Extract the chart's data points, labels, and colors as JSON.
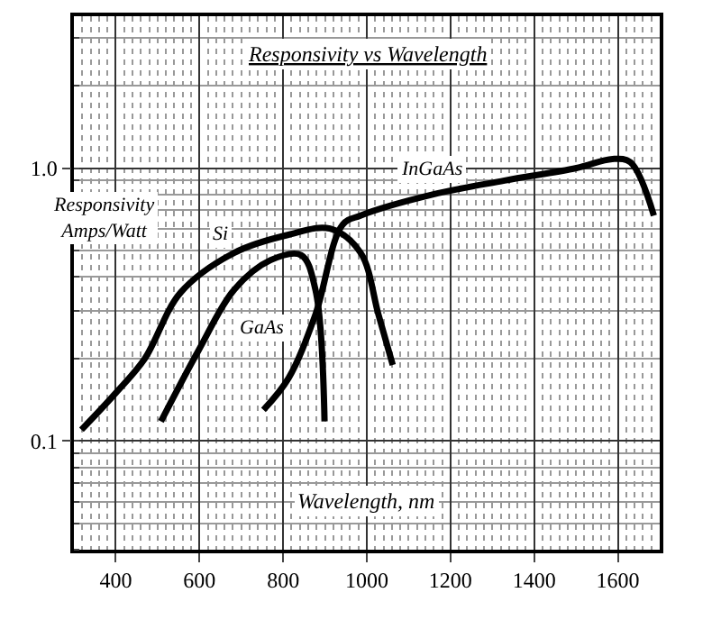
{
  "chart_data": {
    "type": "line",
    "title": "Responsivity vs Wavelength",
    "xlabel": "Wavelength, nm",
    "ylabel": "Responsivity\nAmps/Watt",
    "log": "y",
    "grid": true,
    "legend": false,
    "marker": "none",
    "line_style": "solid",
    "xlim": [
      300,
      1700
    ],
    "xticks": [
      400,
      600,
      800,
      1000,
      1200,
      1400,
      1600
    ],
    "ylim": [
      0.04,
      3.6
    ],
    "yticks": [
      {
        "value": 0.1,
        "label": "0.1"
      },
      {
        "value": 1,
        "label": "1.0"
      }
    ],
    "series": [
      {
        "name": "Si",
        "color": "#000000",
        "x": [
          318,
          400,
          469,
          555,
          684,
          813,
          912,
          985,
          1028,
          1062
        ],
        "values": [
          0.11,
          0.15,
          0.2,
          0.35,
          0.49,
          0.57,
          0.6,
          0.49,
          0.29,
          0.19
        ]
      },
      {
        "name": "GaAs",
        "color": "#000000",
        "x": [
          508,
          598,
          684,
          770,
          843,
          877,
          899
        ],
        "values": [
          0.118,
          0.215,
          0.36,
          0.46,
          0.48,
          0.36,
          0.118
        ]
      },
      {
        "name": "InGaAs",
        "color": "#000000",
        "x": [
          753,
          813,
          877,
          942,
          985,
          1157,
          1329,
          1501,
          1587,
          1630,
          1686
        ],
        "values": [
          0.13,
          0.17,
          0.29,
          0.62,
          0.67,
          0.8,
          0.9,
          1.0,
          1.08,
          1.05,
          0.67
        ]
      }
    ]
  }
}
